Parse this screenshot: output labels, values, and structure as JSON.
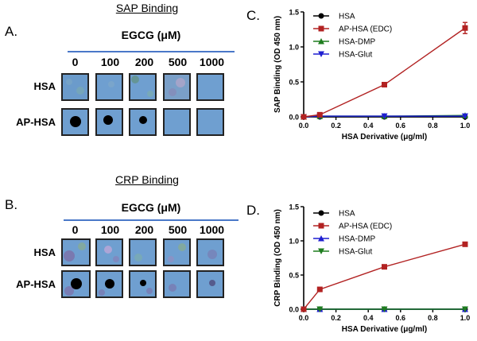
{
  "panels": {
    "A": {
      "letter": "A.",
      "section_title": "SAP Binding",
      "header": "EGCG (μM)",
      "concentrations": [
        "0",
        "100",
        "200",
        "500",
        "1000"
      ],
      "rows": [
        "HSA",
        "AP-HSA"
      ]
    },
    "B": {
      "letter": "B.",
      "section_title": "CRP Binding",
      "header": "EGCG (μM)",
      "concentrations": [
        "0",
        "100",
        "200",
        "500",
        "1000"
      ],
      "rows": [
        "HSA",
        "AP-HSA"
      ]
    }
  },
  "chart_data": [
    {
      "panel": "C.",
      "type": "line",
      "title": "",
      "xlabel": "HSA Derivative (μg/ml)",
      "ylabel": "SAP Binding (OD 450 nm)",
      "xlim": [
        0,
        1.0
      ],
      "ylim": [
        0,
        1.5
      ],
      "xticks": [
        "0.0",
        "0.2",
        "0.4",
        "0.6",
        "0.8",
        "1.0"
      ],
      "yticks": [
        "0.0",
        "0.5",
        "1.0",
        "1.5"
      ],
      "legend_position": "top-left",
      "series": [
        {
          "name": "HSA",
          "color": "#000000",
          "marker": "circle",
          "x": [
            0,
            0.1,
            0.5,
            1.0
          ],
          "y": [
            0,
            0.0,
            0.0,
            0.0
          ]
        },
        {
          "name": "AP-HSA (EDC)",
          "color": "#b22222",
          "marker": "square",
          "x": [
            0,
            0.1,
            0.5,
            1.0
          ],
          "y": [
            0,
            0.03,
            0.46,
            1.27
          ]
        },
        {
          "name": "HSA-DMP",
          "color": "#1e7d1e",
          "marker": "triangle-up",
          "x": [
            0,
            0.1,
            0.5,
            1.0
          ],
          "y": [
            0,
            0.01,
            0.01,
            0.02
          ]
        },
        {
          "name": "HSA-Glut",
          "color": "#1f1fd0",
          "marker": "triangle-down",
          "x": [
            0,
            0.1,
            0.5,
            1.0
          ],
          "y": [
            0,
            0.01,
            0.01,
            0.01
          ]
        }
      ]
    },
    {
      "panel": "D.",
      "type": "line",
      "title": "",
      "xlabel": "HSA Derivative (μg/ml)",
      "ylabel": "CRP Binding (OD 450 nm)",
      "xlim": [
        0,
        1.0
      ],
      "ylim": [
        0,
        1.5
      ],
      "xticks": [
        "0.0",
        "0.2",
        "0.4",
        "0.6",
        "0.8",
        "1.0"
      ],
      "yticks": [
        "0.0",
        "0.5",
        "1.0",
        "1.5"
      ],
      "legend_position": "top-left",
      "series": [
        {
          "name": "HSA",
          "color": "#000000",
          "marker": "circle",
          "x": [
            0,
            0.1,
            0.5,
            1.0
          ],
          "y": [
            0,
            0.0,
            0.0,
            0.0
          ]
        },
        {
          "name": "AP-HSA (EDC)",
          "color": "#b22222",
          "marker": "square",
          "x": [
            0,
            0.1,
            0.5,
            1.0
          ],
          "y": [
            0,
            0.29,
            0.62,
            0.95
          ]
        },
        {
          "name": "HSA-DMP",
          "color": "#1f1fd0",
          "marker": "triangle-up",
          "x": [
            0,
            0.1,
            0.5,
            1.0
          ],
          "y": [
            0,
            0.0,
            0.0,
            0.0
          ]
        },
        {
          "name": "HSA-Glut",
          "color": "#1e7d1e",
          "marker": "triangle-down",
          "x": [
            0,
            0.1,
            0.5,
            1.0
          ],
          "y": [
            0,
            0.0,
            0.0,
            0.0
          ]
        }
      ]
    }
  ]
}
